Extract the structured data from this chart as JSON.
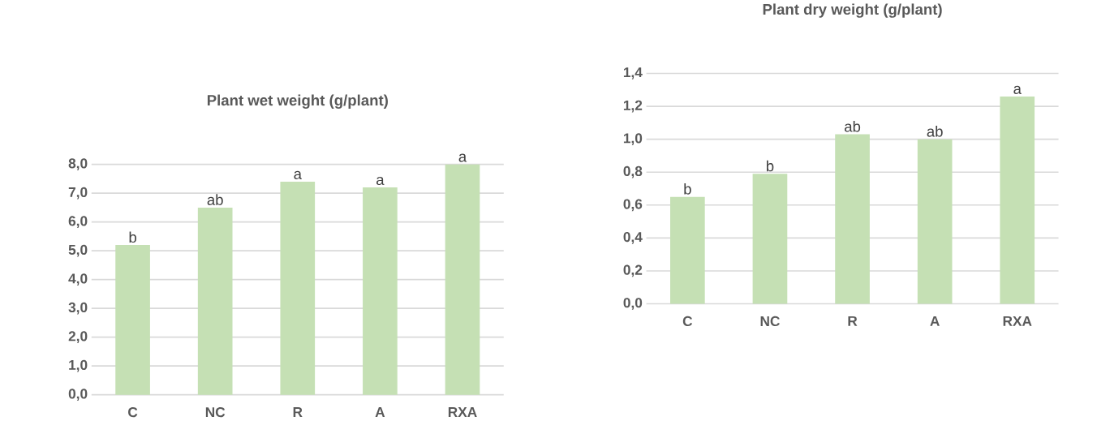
{
  "chart_data": [
    {
      "type": "bar",
      "title": "Plant wet weight (g/plant)",
      "categories": [
        "C",
        "NC",
        "R",
        "A",
        "RXA"
      ],
      "values": [
        5.2,
        6.5,
        7.4,
        7.2,
        8.0
      ],
      "color": "#c5e0b4",
      "ylim": [
        0,
        8
      ],
      "yticks": [
        {
          "value": 0,
          "label": "0,0"
        },
        {
          "value": 1,
          "label": "1,0"
        },
        {
          "value": 2,
          "label": "2,0"
        },
        {
          "value": 3,
          "label": "3,0"
        },
        {
          "value": 4,
          "label": "4,0"
        },
        {
          "value": 5,
          "label": "5,0"
        },
        {
          "value": 6,
          "label": "6,0"
        },
        {
          "value": 7,
          "label": "7,0"
        },
        {
          "value": 8,
          "label": "8,0"
        }
      ],
      "grid": "y",
      "annotations": [
        {
          "text": "b",
          "x": "C",
          "y": 5.2
        },
        {
          "text": "ab",
          "x": "NC",
          "y": 6.5
        },
        {
          "text": "a",
          "x": "R",
          "y": 7.4
        },
        {
          "text": "a",
          "x": "A",
          "y": 7.2
        },
        {
          "text": "a",
          "x": "RXA",
          "y": 8.0
        }
      ]
    },
    {
      "type": "bar",
      "title": "Plant dry weight (g/plant)",
      "categories": [
        "C",
        "NC",
        "R",
        "A",
        "RXA"
      ],
      "values": [
        0.65,
        0.79,
        1.03,
        1.0,
        1.26
      ],
      "color": "#c5e0b4",
      "ylim": [
        0,
        1.4
      ],
      "yticks": [
        {
          "value": 0,
          "label": "0,0"
        },
        {
          "value": 0.2,
          "label": "0,2"
        },
        {
          "value": 0.4,
          "label": "0,4"
        },
        {
          "value": 0.6,
          "label": "0,6"
        },
        {
          "value": 0.8,
          "label": "0,8"
        },
        {
          "value": 1.0,
          "label": "1,0"
        },
        {
          "value": 1.2,
          "label": "1,2"
        },
        {
          "value": 1.4,
          "label": "1,4"
        }
      ],
      "grid": "y",
      "annotations": [
        {
          "text": "b",
          "x": "C",
          "y": 0.65
        },
        {
          "text": "b",
          "x": "NC",
          "y": 0.79
        },
        {
          "text": "ab",
          "x": "R",
          "y": 1.03
        },
        {
          "text": "ab",
          "x": "A",
          "y": 1.0
        },
        {
          "text": "a",
          "x": "RXA",
          "y": 1.26
        }
      ]
    }
  ]
}
